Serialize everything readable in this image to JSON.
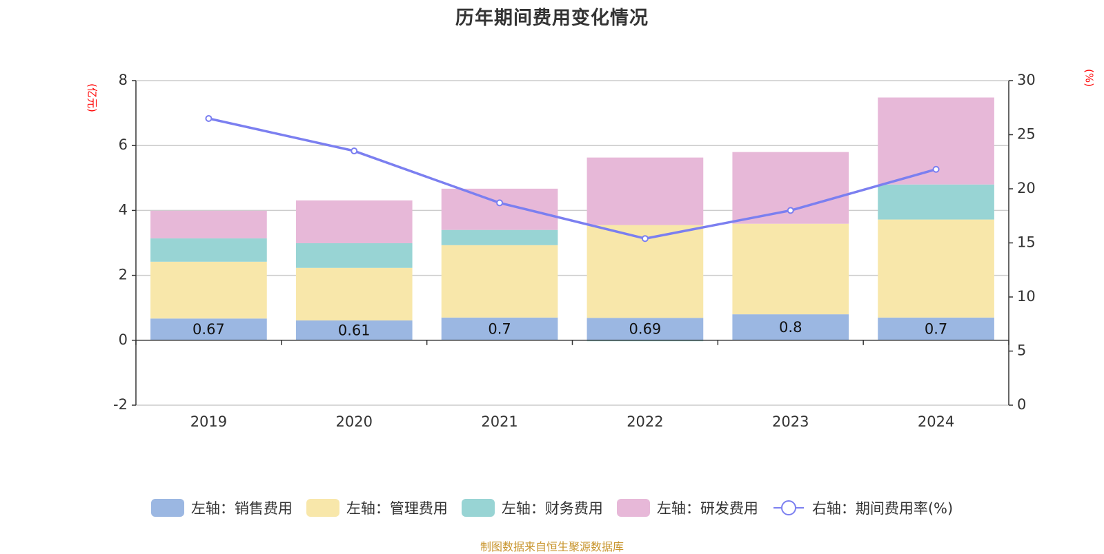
{
  "chart_data": {
    "type": "bar",
    "stacked": true,
    "title": "历年期间费用变化情况",
    "categories": [
      "2019",
      "2020",
      "2021",
      "2022",
      "2023",
      "2024"
    ],
    "left_axis": {
      "label": "(亿元)",
      "ylim": [
        -2,
        8
      ],
      "ticks": [
        -2,
        0,
        2,
        4,
        6,
        8
      ]
    },
    "right_axis": {
      "label": "(%)",
      "ylim": [
        0,
        30
      ],
      "ticks": [
        0,
        5,
        10,
        15,
        20,
        25,
        30
      ]
    },
    "grid": true,
    "legend_position": "bottom",
    "series": [
      {
        "name": "左轴：销售费用",
        "axis": "left",
        "type": "bar",
        "color": "#9bb7e2",
        "values": [
          0.67,
          0.61,
          0.7,
          0.69,
          0.8,
          0.7
        ],
        "show_labels": true
      },
      {
        "name": "左轴：管理费用",
        "axis": "left",
        "type": "bar",
        "color": "#f8e7aa",
        "values": [
          1.75,
          1.62,
          2.23,
          2.86,
          2.79,
          3.02
        ],
        "show_labels": false
      },
      {
        "name": "左轴：财务费用",
        "axis": "left",
        "type": "bar",
        "color": "#98d4d4",
        "values": [
          0.72,
          0.76,
          0.47,
          -0.03,
          -0.01,
          1.08
        ],
        "show_labels": false
      },
      {
        "name": "左轴：研发费用",
        "axis": "left",
        "type": "bar",
        "color": "#e7b8d8",
        "values": [
          0.85,
          1.32,
          1.27,
          2.08,
          2.21,
          2.68
        ],
        "show_labels": false
      },
      {
        "name": "右轴：期间费用率(%)",
        "axis": "right",
        "type": "line",
        "color": "#7b7ff0",
        "values": [
          26.5,
          23.5,
          18.7,
          15.4,
          18.0,
          21.8
        ],
        "show_labels": false
      }
    ]
  },
  "footer": "制图数据来自恒生聚源数据库"
}
